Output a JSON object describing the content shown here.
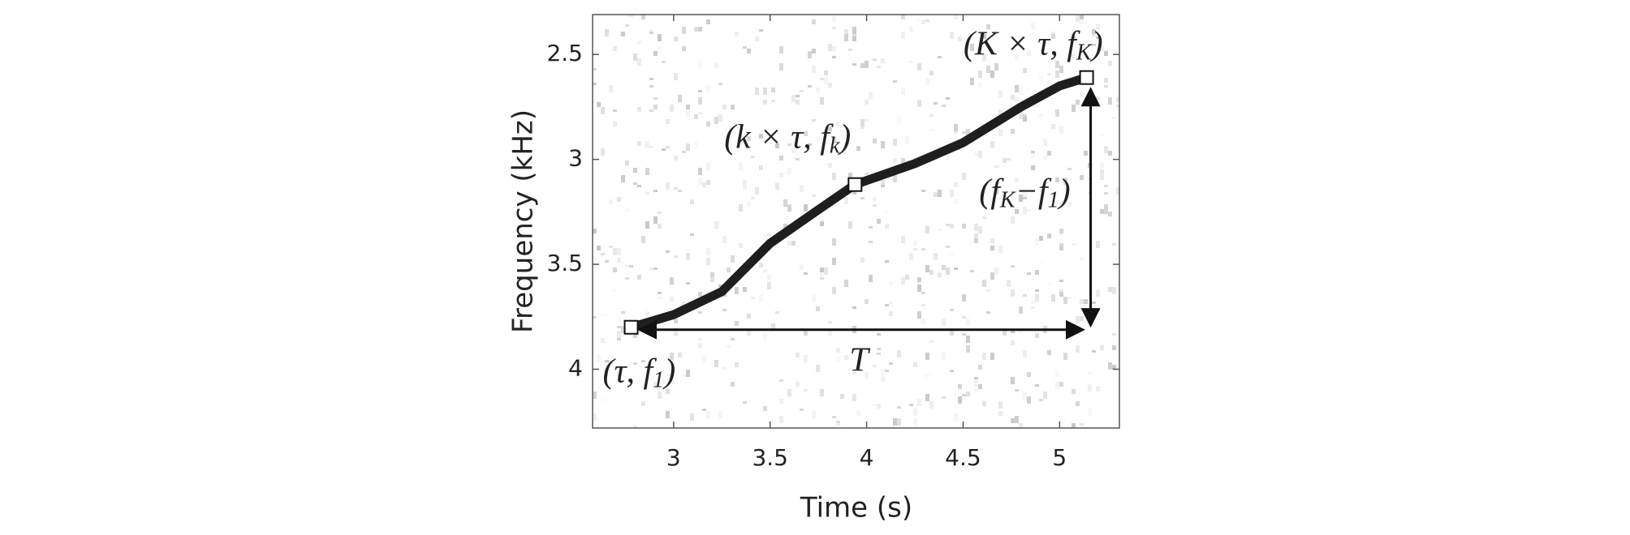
{
  "chart_data": {
    "type": "line",
    "x_label": "Time (s)",
    "y_label": "Frequency (kHz)",
    "xlim": [
      2.58,
      5.31
    ],
    "xticks": [
      3,
      3.5,
      4,
      4.5,
      5
    ],
    "ylim": [
      2.31,
      4.28
    ],
    "yticks": [
      2.5,
      3,
      3.5,
      4
    ],
    "y_inverted": true,
    "series": [
      {
        "color": "#1e1e1e",
        "x": [
          2.78,
          3.0,
          3.25,
          3.5,
          3.75,
          3.94,
          4.25,
          4.5,
          4.8,
          5.0,
          5.14
        ],
        "values": [
          3.8,
          3.74,
          3.63,
          3.4,
          3.24,
          3.12,
          3.02,
          2.92,
          2.75,
          2.65,
          2.61
        ]
      }
    ],
    "annotations": [
      [
        {
          "t": "(τ, f"
        },
        {
          "sub": "1"
        },
        {
          "t": ")"
        }
      ],
      [
        {
          "t": "(k × τ, f"
        },
        {
          "sub": "k"
        },
        {
          "t": ")"
        }
      ],
      [
        {
          "t": "(K × τ, f"
        },
        {
          "sub": "K"
        },
        {
          "t": ")"
        }
      ],
      [
        {
          "t": "(f"
        },
        {
          "sub": "K"
        },
        {
          "t": "−f"
        },
        {
          "sub": "1"
        },
        {
          "t": ")"
        }
      ],
      [
        {
          "t": "T"
        }
      ]
    ]
  }
}
